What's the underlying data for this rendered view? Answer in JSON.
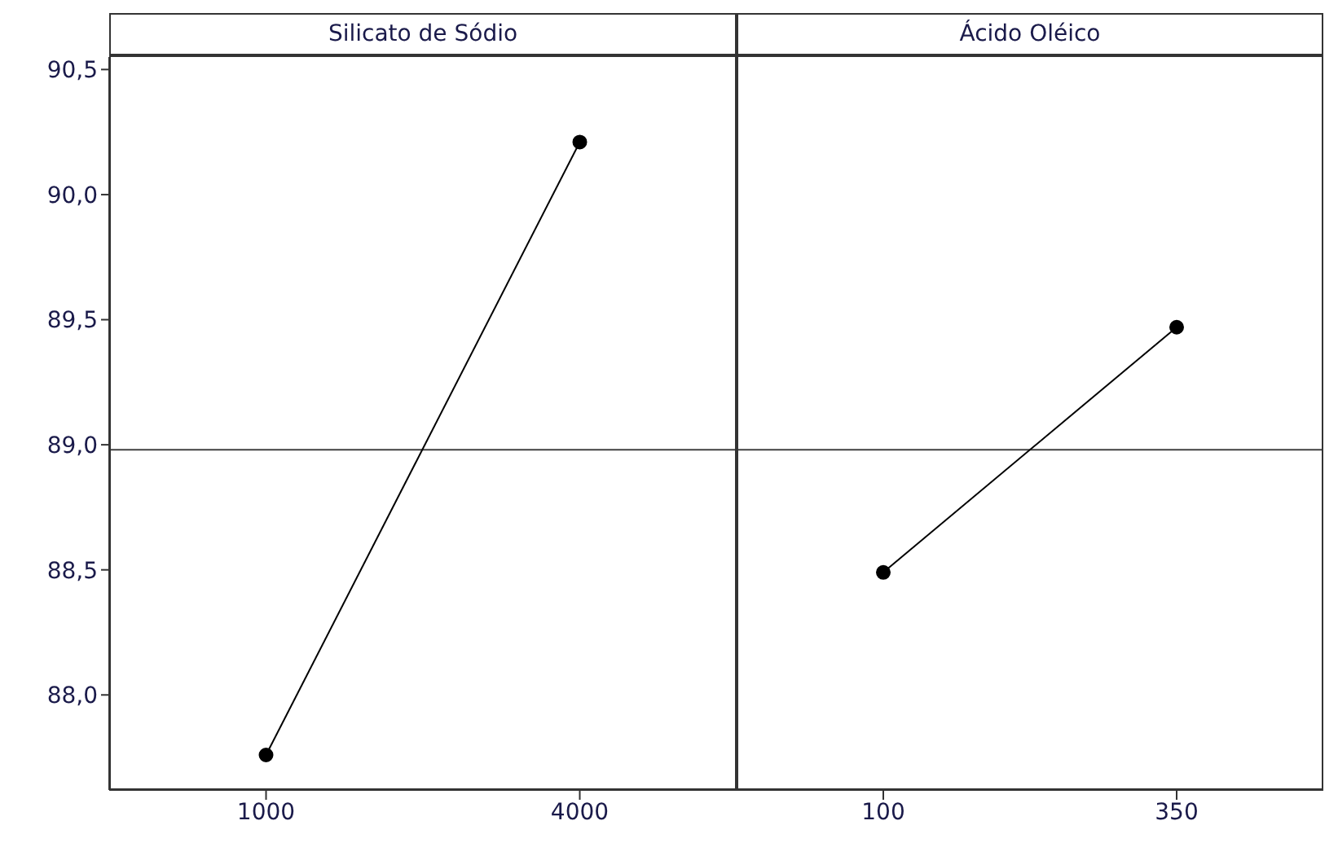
{
  "chart_data": [
    {
      "type": "line",
      "title": "Silicato de Sódio",
      "categories": [
        "1000",
        "4000"
      ],
      "values": [
        87.76,
        90.21
      ],
      "color": "#000000",
      "marker": "circle",
      "ylim": [
        87.62,
        90.55
      ],
      "yticks": [
        {
          "value": 88.0,
          "label": "88,0"
        },
        {
          "value": 88.5,
          "label": "88,5"
        },
        {
          "value": 89.0,
          "label": "89,0"
        },
        {
          "value": 89.5,
          "label": "89,5"
        },
        {
          "value": 90.0,
          "label": "90,0"
        },
        {
          "value": 90.5,
          "label": "90,5"
        }
      ],
      "ref_lines": [
        {
          "axis": "y",
          "value": 88.98,
          "color": "#404040"
        }
      ]
    },
    {
      "type": "line",
      "title": "Ácido Oléico",
      "categories": [
        "100",
        "350"
      ],
      "values": [
        88.49,
        89.47
      ],
      "color": "#000000",
      "marker": "circle",
      "ylim": [
        87.62,
        90.55
      ],
      "ref_lines": [
        {
          "axis": "y",
          "value": 88.98,
          "color": "#404040"
        }
      ],
      "tick_labels": "x"
    }
  ]
}
